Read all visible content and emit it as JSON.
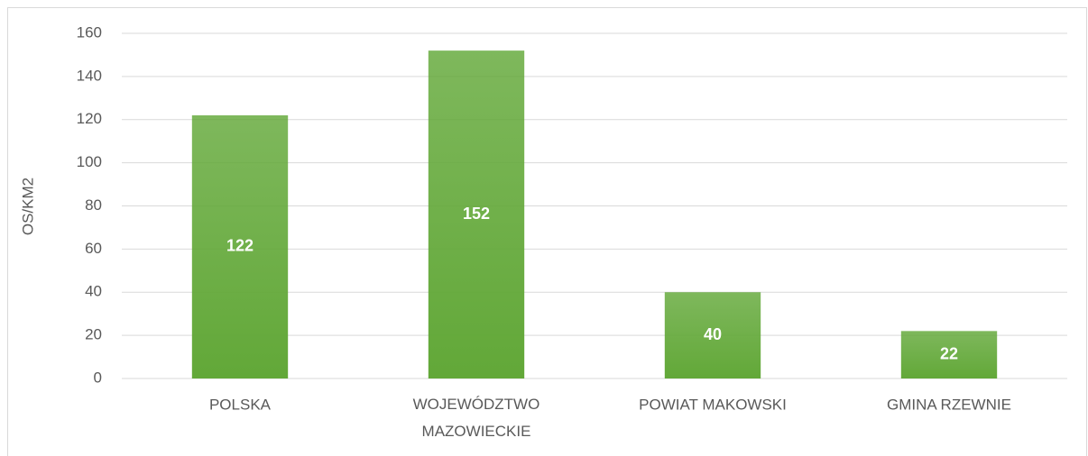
{
  "chart_data": {
    "type": "bar",
    "y_label": "OS/KM2",
    "categories": [
      "POLSKA",
      "WOJEWÓDZTWO MAZOWIECKIE",
      "POWIAT MAKOWSKI",
      "GMINA RZEWNIE"
    ],
    "values": [
      122,
      152,
      40,
      22
    ],
    "color": "#62a838",
    "ylim": [
      0,
      160
    ],
    "yticks": [
      0,
      20,
      40,
      60,
      80,
      100,
      120,
      140,
      160
    ],
    "grid": true
  }
}
